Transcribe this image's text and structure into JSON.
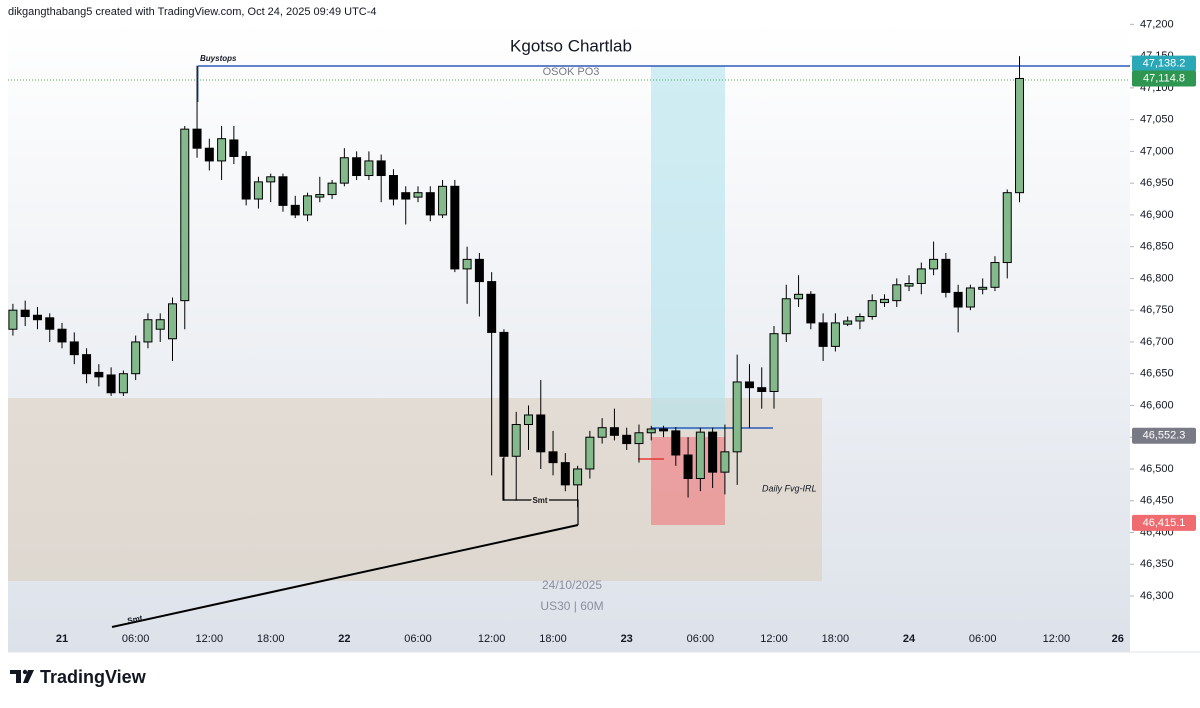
{
  "chart_data": {
    "type": "candlestick",
    "header": "dikgangthabang5 created with TradingView.com, Oct 24, 2025 09:49 UTC-4",
    "title": "Kgotso Chartlab",
    "subtitle": "OSOK PO3",
    "annotations": [
      "Buystops",
      "Smt",
      "Smt",
      "Daily Fvg-IRL"
    ],
    "watermark": [
      "24/10/2025",
      "US30 | 60M"
    ],
    "brand": "TradingView",
    "up_color": "#83b98b",
    "down_color": "#000000",
    "open": [
      46720,
      46750,
      46742,
      46738,
      46720,
      46700,
      46680,
      46652,
      46648,
      46620,
      46650,
      46700,
      46720,
      46705,
      46765,
      47035,
      47005,
      46985,
      47018,
      46992,
      46925,
      46952,
      46960,
      46915,
      46900,
      46928,
      46932,
      46950,
      46990,
      46962,
      46985,
      46962,
      46935,
      46928,
      46935,
      46900,
      46945,
      46815,
      46830,
      46795,
      46715,
      46520,
      46570,
      46585,
      46527,
      46510,
      46475,
      46500,
      46550,
      46565,
      46553,
      46540,
      46557,
      46563,
      46560,
      46522,
      46485,
      46558,
      46495,
      46527,
      46637,
      46628,
      46622,
      46713,
      46768,
      46775,
      46730,
      46693,
      46728,
      46733,
      46740,
      46762,
      46765,
      46788,
      46792,
      46815,
      46830,
      46778,
      46755,
      46783,
      46786,
      46825,
      46935
    ],
    "high": [
      46760,
      46765,
      46755,
      46745,
      46730,
      46715,
      46690,
      46665,
      46660,
      46655,
      46710,
      46745,
      46745,
      46770,
      47040,
      47135,
      47020,
      47040,
      47040,
      47000,
      46960,
      46965,
      46965,
      46930,
      46935,
      46960,
      46955,
      47005,
      47000,
      47000,
      46995,
      46972,
      46945,
      46945,
      46945,
      46955,
      46955,
      46850,
      46840,
      46810,
      46720,
      46590,
      46600,
      46640,
      46560,
      46525,
      46505,
      46560,
      46580,
      46595,
      46565,
      46570,
      46568,
      46568,
      46566,
      46550,
      46565,
      46565,
      46570,
      46680,
      46665,
      46660,
      46725,
      46790,
      46805,
      46780,
      46745,
      46745,
      46740,
      46745,
      46775,
      46775,
      46800,
      46805,
      46825,
      46858,
      46840,
      46790,
      46790,
      46800,
      46835,
      46940,
      47150
    ],
    "low": [
      46710,
      46725,
      46720,
      46700,
      46690,
      46665,
      46635,
      46630,
      46615,
      46615,
      46640,
      46690,
      46700,
      46670,
      46720,
      46990,
      46970,
      46955,
      46980,
      46915,
      46910,
      46920,
      46905,
      46895,
      46890,
      46920,
      46925,
      46945,
      46955,
      46955,
      46920,
      46915,
      46885,
      46920,
      46890,
      46895,
      46810,
      46760,
      46740,
      46490,
      46450,
      46450,
      46530,
      46500,
      46490,
      46465,
      46440,
      46485,
      46540,
      46545,
      46530,
      46510,
      46545,
      46550,
      46505,
      46455,
      46465,
      46470,
      46460,
      46475,
      46565,
      46595,
      46595,
      46700,
      46755,
      46720,
      46670,
      46685,
      46725,
      46720,
      46735,
      46755,
      46755,
      46780,
      46775,
      46805,
      46770,
      46715,
      46750,
      46775,
      46780,
      46800,
      46920
    ],
    "close": [
      46750,
      46740,
      46735,
      46720,
      46700,
      46680,
      46650,
      46645,
      46620,
      46650,
      46700,
      46735,
      46735,
      46760,
      47035,
      47005,
      46985,
      47020,
      46992,
      46925,
      46952,
      46960,
      46915,
      46900,
      46930,
      46932,
      46950,
      46990,
      46962,
      46985,
      46962,
      46925,
      46925,
      46935,
      46900,
      46945,
      46815,
      46830,
      46795,
      46715,
      46520,
      46570,
      46585,
      46527,
      46510,
      46475,
      46500,
      46550,
      46565,
      46553,
      46540,
      46557,
      46563,
      46560,
      46522,
      46485,
      46558,
      46495,
      46527,
      46637,
      46628,
      46622,
      46713,
      46768,
      46775,
      46730,
      46693,
      46730,
      46733,
      46740,
      46765,
      46767,
      46790,
      46792,
      46815,
      46830,
      46778,
      46755,
      46785,
      46786,
      46825,
      46935,
      47114.8
    ],
    "xlim": [
      -0.4,
      91
    ],
    "xticks": [
      {
        "value": 4,
        "label": "21"
      },
      {
        "value": 10,
        "label": "06:00"
      },
      {
        "value": 16,
        "label": "12:00"
      },
      {
        "value": 21,
        "label": "18:00"
      },
      {
        "value": 27,
        "label": "22"
      },
      {
        "value": 33,
        "label": "06:00"
      },
      {
        "value": 39,
        "label": "12:00"
      },
      {
        "value": 44,
        "label": "18:00"
      },
      {
        "value": 50,
        "label": "23"
      },
      {
        "value": 56,
        "label": "06:00"
      },
      {
        "value": 62,
        "label": "12:00"
      },
      {
        "value": 67,
        "label": "18:00"
      },
      {
        "value": 73,
        "label": "24"
      },
      {
        "value": 79,
        "label": "06:00"
      },
      {
        "value": 85,
        "label": "12:00"
      },
      {
        "value": 90,
        "label": "26"
      }
    ],
    "ylim": [
      46215,
      47210
    ],
    "yticks": [
      {
        "value": 46300,
        "label": "46,300"
      },
      {
        "value": 46350,
        "label": "46,350"
      },
      {
        "value": 46400,
        "label": "46,400"
      },
      {
        "value": 46450,
        "label": "46,450"
      },
      {
        "value": 46500,
        "label": "46,500"
      },
      {
        "value": 46550,
        "label": "46,550"
      },
      {
        "value": 46600,
        "label": "46,600"
      },
      {
        "value": 46650,
        "label": "46,650"
      },
      {
        "value": 46700,
        "label": "46,700"
      },
      {
        "value": 46750,
        "label": "46,750"
      },
      {
        "value": 46800,
        "label": "46,800"
      },
      {
        "value": 46850,
        "label": "46,850"
      },
      {
        "value": 46900,
        "label": "46,900"
      },
      {
        "value": 46950,
        "label": "46,950"
      },
      {
        "value": 47000,
        "label": "47,000"
      },
      {
        "value": 47050,
        "label": "47,050"
      },
      {
        "value": 47100,
        "label": "47,100"
      },
      {
        "value": 47150,
        "label": "47,150"
      },
      {
        "value": 47200,
        "label": "47,200"
      }
    ],
    "price_labels": [
      {
        "value": 47138.2,
        "label": "47,138.2",
        "color": "#2aa8b8"
      },
      {
        "value": 47114.8,
        "label": "47,114.8",
        "color": "#2e9650"
      },
      {
        "value": 46552.3,
        "label": "46,552.3",
        "color": "#787b86"
      },
      {
        "value": 46415.1,
        "label": "46,415.1",
        "color": "#ef6b6f"
      }
    ]
  }
}
